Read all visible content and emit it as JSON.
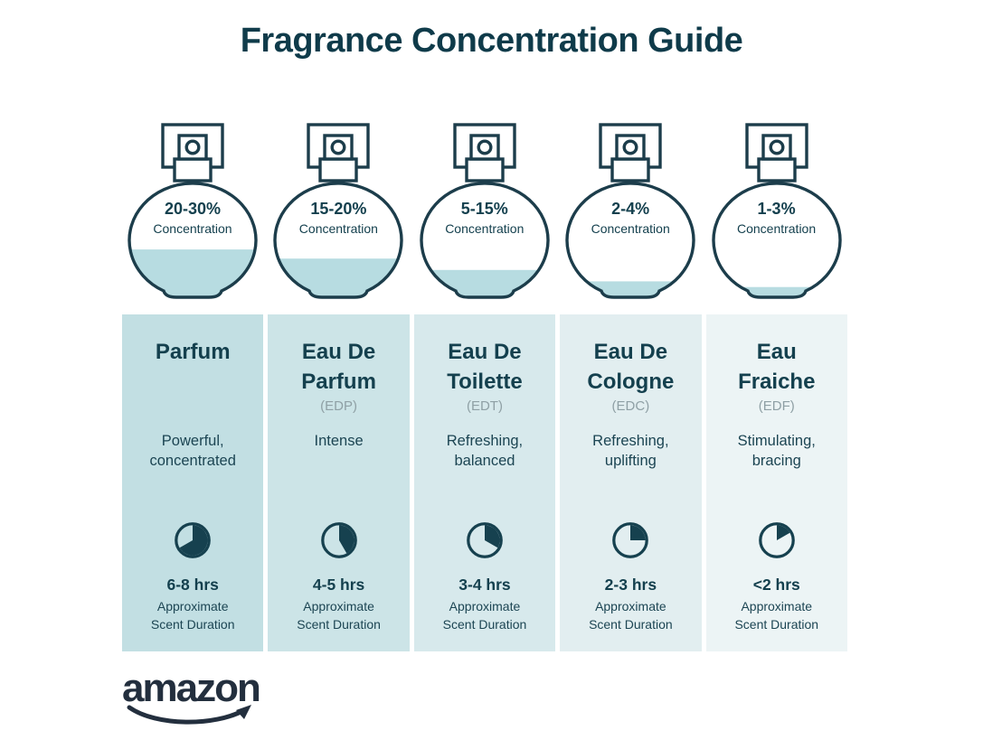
{
  "title": "Fragrance Concentration Guide",
  "shared": {
    "concentration_label": "Concentration",
    "duration_caption_line1": "Approximate",
    "duration_caption_line2": "Scent Duration"
  },
  "colors": {
    "title_text": "#0f3b4a",
    "body_text": "#14404e",
    "abbr_gray": "#8fa0a5",
    "bottle_stroke": "#1c3d4b",
    "bottle_liquid": "#b7dce1",
    "logo_navy": "#232f3e",
    "column_bg": [
      "#c2dfe3",
      "#cce4e7",
      "#d7e9ec",
      "#e2eef0",
      "#ecf4f5"
    ]
  },
  "columns": [
    {
      "concentration": "20-30%",
      "fill_percent": 42,
      "name": "Parfum",
      "abbr": "",
      "description": "Powerful, concentrated",
      "duration": "6-8 hrs",
      "clock_degrees": 240
    },
    {
      "concentration": "15-20%",
      "fill_percent": 34,
      "name": "Eau De Parfum",
      "abbr": "(EDP)",
      "description": "Intense",
      "duration": "4-5 hrs",
      "clock_degrees": 150
    },
    {
      "concentration": "5-15%",
      "fill_percent": 24,
      "name": "Eau De Toilette",
      "abbr": "(EDT)",
      "description": "Refreshing, balanced",
      "duration": "3-4 hrs",
      "clock_degrees": 120
    },
    {
      "concentration": "2-4%",
      "fill_percent": 14,
      "name": "Eau De Cologne",
      "abbr": "(EDC)",
      "description": "Refreshing, uplifting",
      "duration": "2-3 hrs",
      "clock_degrees": 90
    },
    {
      "concentration": "1-3%",
      "fill_percent": 9,
      "name": "Eau Fraiche",
      "abbr": "(EDF)",
      "description": "Stimulating, bracing",
      "duration": "<2 hrs",
      "clock_degrees": 60
    }
  ],
  "footer": {
    "brand": "amazon"
  }
}
